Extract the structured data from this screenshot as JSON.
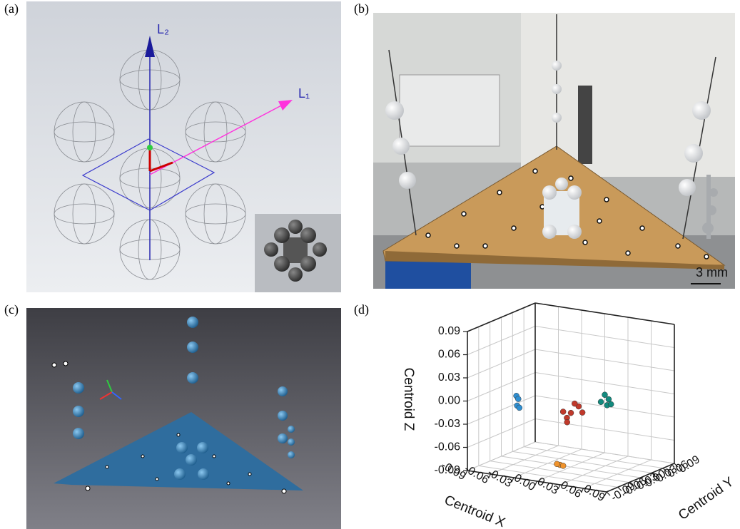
{
  "panels": {
    "a": {
      "label": "(a)",
      "axis_2": "L₂",
      "axis_1": "L₁"
    },
    "b": {
      "label": "(b)",
      "scale_bar": "3 mm"
    },
    "c": {
      "label": "(c)"
    },
    "d": {
      "label": "(d)"
    }
  },
  "chart_data": {
    "type": "scatter3d",
    "xlabel": "Centroid X",
    "ylabel": "Centroid Y",
    "zlabel": "Centroid Z",
    "xlim": [
      -0.09,
      0.09
    ],
    "ylim": [
      -0.09,
      0.09
    ],
    "zlim": [
      -0.09,
      0.09
    ],
    "xticks": [
      -0.09,
      -0.06,
      -0.03,
      {
        "value": 0,
        "label": "0.00"
      },
      0.03,
      0.06,
      0.09
    ],
    "yticks": [
      -0.09,
      -0.06,
      -0.03,
      {
        "value": 0,
        "label": "0.00"
      },
      0.03,
      0.06,
      0.09
    ],
    "zticks": [
      -0.09,
      -0.06,
      -0.03,
      {
        "value": 0,
        "label": "0.00"
      },
      0.03,
      0.06,
      0.09
    ],
    "grid": true,
    "series": [
      {
        "color": "#c0392b",
        "x": [
          0.0,
          0.01,
          -0.01,
          0.0,
          0.01,
          -0.01,
          0.0
        ],
        "y": [
          0.0,
          0.0,
          0.01,
          -0.01,
          0.01,
          0.0,
          0.01
        ],
        "z": [
          -0.02,
          -0.01,
          -0.03,
          -0.03,
          -0.02,
          -0.02,
          -0.01
        ]
      },
      {
        "color": "#2f8fd1",
        "x": [
          -0.09,
          -0.09,
          -0.09,
          -0.09
        ],
        "y": [
          0.04,
          0.045,
          0.042,
          0.048
        ],
        "z": [
          -0.02,
          -0.025,
          -0.033,
          -0.037
        ]
      },
      {
        "color": "#138a7e",
        "x": [
          0.0,
          0.005,
          -0.005,
          0.003,
          0.008
        ],
        "y": [
          0.09,
          0.09,
          0.09,
          0.09,
          0.09
        ],
        "z": [
          -0.015,
          -0.02,
          -0.025,
          -0.028,
          -0.026
        ]
      },
      {
        "color": "#f0932b",
        "x": [
          -0.015,
          -0.01,
          -0.02
        ],
        "y": [
          0.002,
          0.0,
          0.004
        ],
        "z": [
          -0.09,
          -0.09,
          -0.09
        ]
      }
    ]
  }
}
